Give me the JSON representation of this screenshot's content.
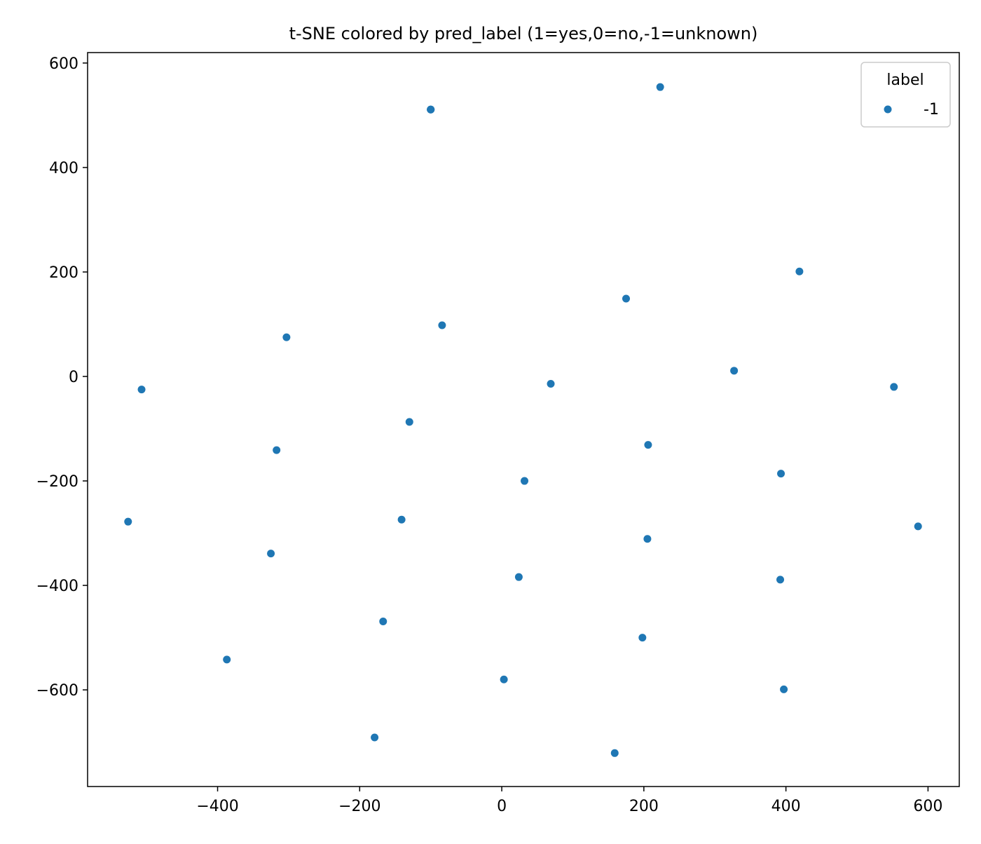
{
  "chart_data": {
    "type": "scatter",
    "title": "t-SNE colored by pred_label (1=yes,0=no,-1=unknown)",
    "xlabel": "",
    "ylabel": "",
    "xlim": [
      -583,
      644
    ],
    "ylim": [
      -785,
      620
    ],
    "x_ticks": [
      -400,
      -200,
      0,
      200,
      400,
      600
    ],
    "y_ticks": [
      600,
      400,
      200,
      0,
      -200,
      -400,
      -600
    ],
    "grid": false,
    "legend": {
      "title": "label",
      "placement": "top-right"
    },
    "series": [
      {
        "name": "-1",
        "color": "#1f77b4",
        "points": [
          [
            -100,
            511
          ],
          [
            -100,
            511
          ],
          [
            -100,
            511
          ],
          [
            223,
            554
          ],
          [
            419,
            201
          ],
          [
            175,
            149
          ],
          [
            -84,
            98
          ],
          [
            -303,
            75
          ],
          [
            327,
            11
          ],
          [
            -507,
            -25
          ],
          [
            69,
            -14
          ],
          [
            552,
            -20
          ],
          [
            -130,
            -87
          ],
          [
            206,
            -131
          ],
          [
            -317,
            -141
          ],
          [
            32,
            -200
          ],
          [
            393,
            -186
          ],
          [
            -526,
            -278
          ],
          [
            -141,
            -274
          ],
          [
            586,
            -287
          ],
          [
            205,
            -311
          ],
          [
            -325,
            -339
          ],
          [
            24,
            -384
          ],
          [
            392,
            -389
          ],
          [
            -167,
            -469
          ],
          [
            198,
            -500
          ],
          [
            -387,
            -542
          ],
          [
            3,
            -580
          ],
          [
            397,
            -599
          ],
          [
            -179,
            -691
          ],
          [
            159,
            -721
          ]
        ]
      }
    ]
  }
}
